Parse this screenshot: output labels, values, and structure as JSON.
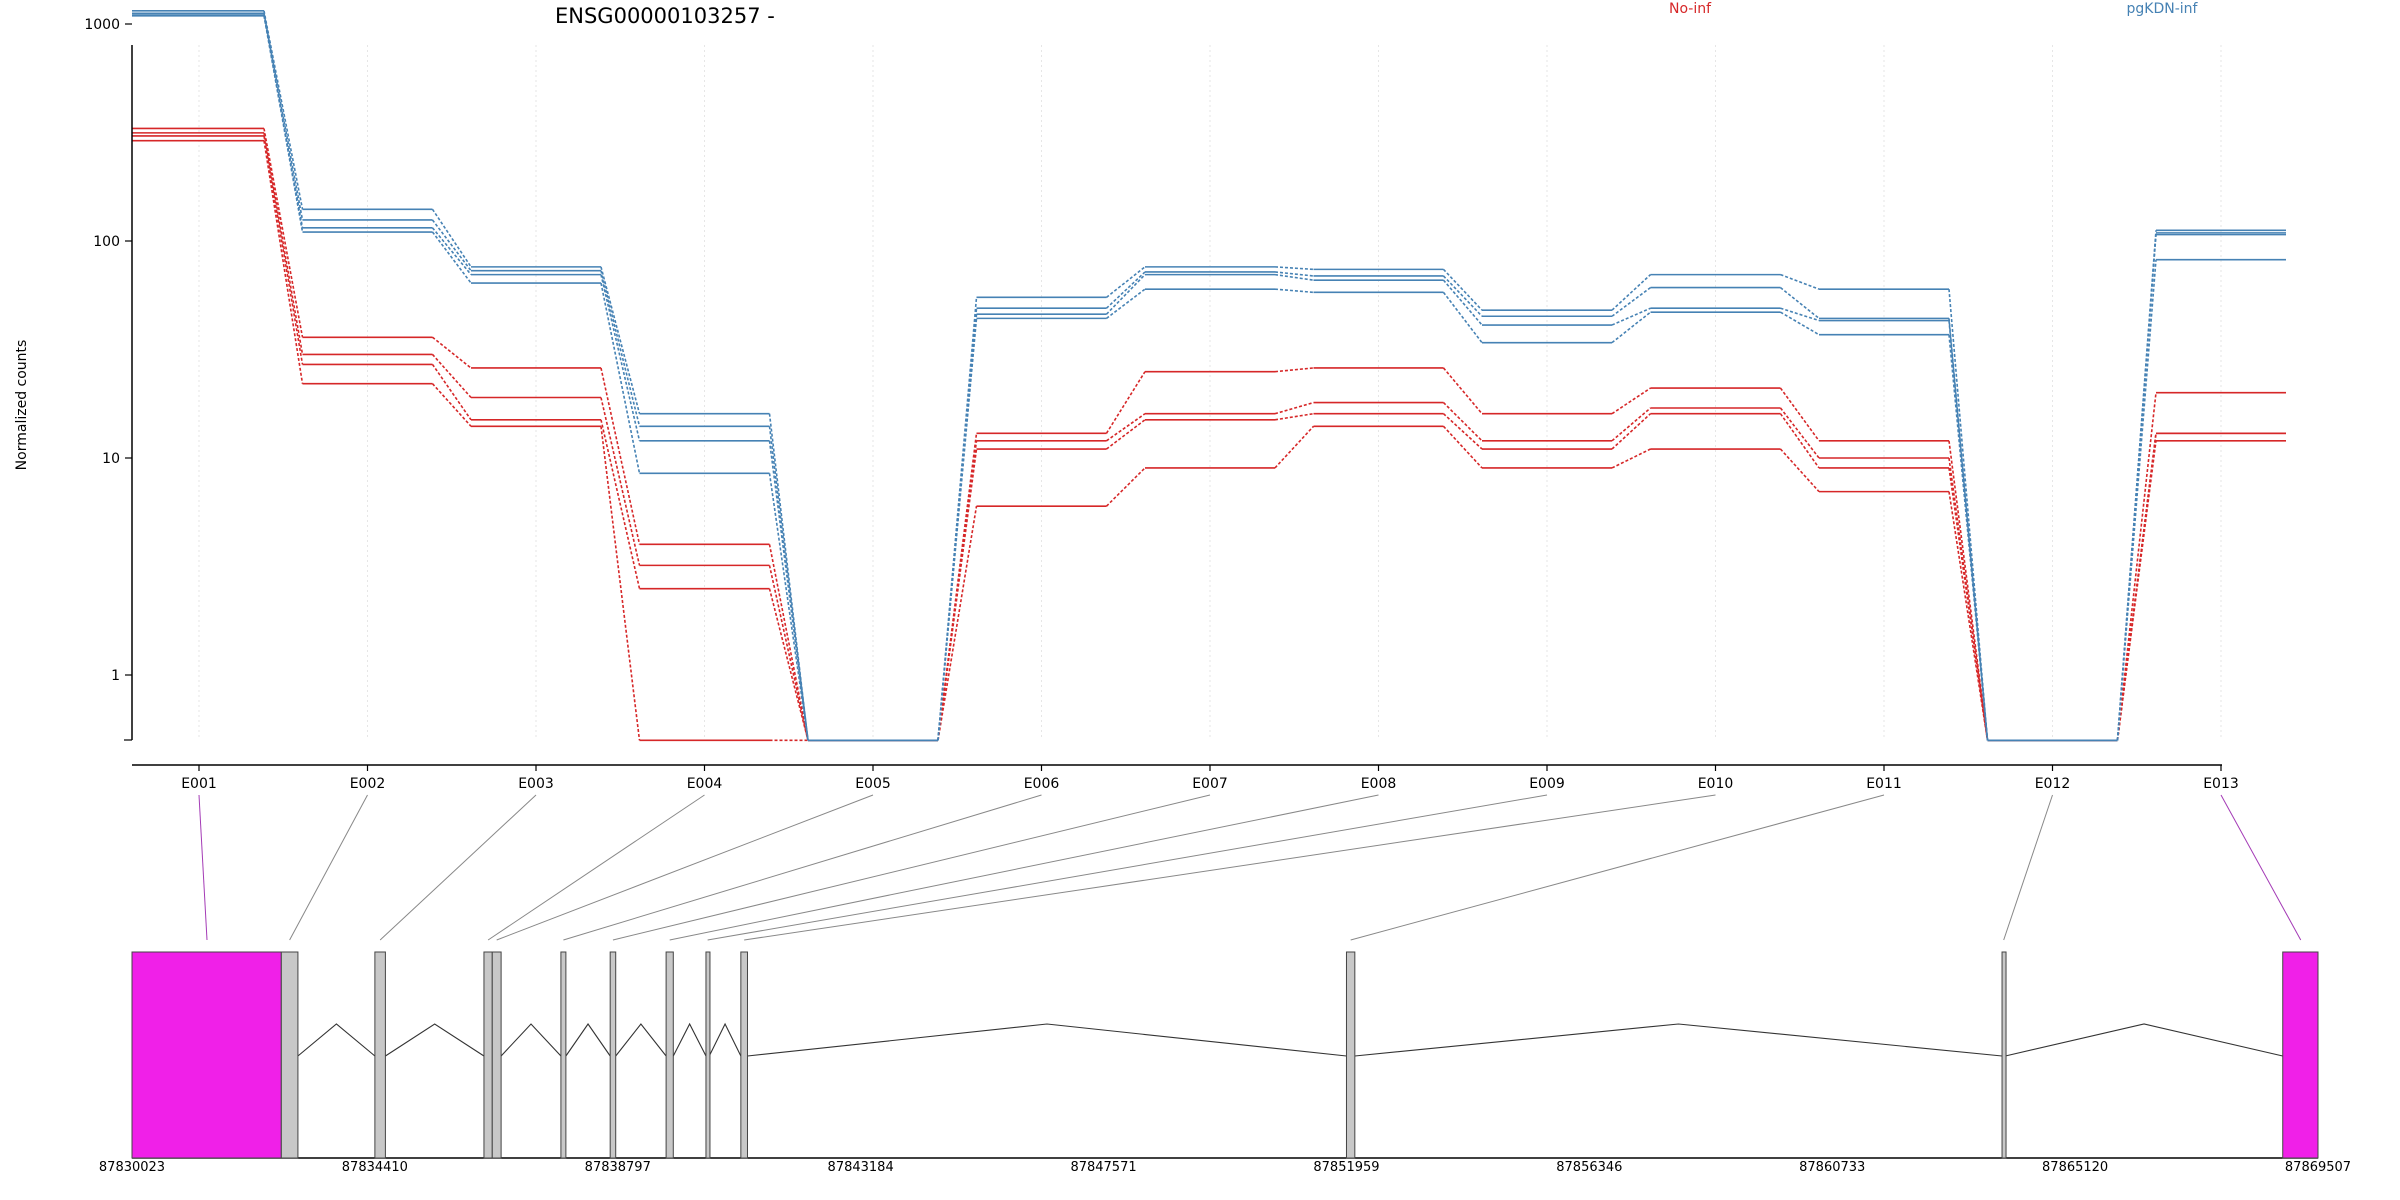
{
  "chart_data": {
    "type": "line",
    "title": "ENSG00000103257 -",
    "ylabel": "Normalized counts",
    "y_scale": "log10",
    "ylim": [
      0.5,
      1500
    ],
    "y_ticks": [
      1,
      10,
      100,
      1000
    ],
    "y_tick_labels": [
      "1",
      "10",
      "100",
      "1000"
    ],
    "categories": [
      "E001",
      "E002",
      "E003",
      "E004",
      "E005",
      "E006",
      "E007",
      "E008",
      "E009",
      "E010",
      "E011",
      "E012",
      "E013"
    ],
    "grid": "vertical dotted lines at exons",
    "legend_position": "top",
    "legend": [
      {
        "name": "No-inf",
        "color": "#d62728"
      },
      {
        "name": "pgKDN-inf",
        "color": "#4682b4"
      }
    ],
    "series": [
      {
        "group": "No-inf",
        "color": "#d62728",
        "values": [
          330,
          36,
          26,
          4,
          0.5,
          13,
          25,
          26,
          16,
          21,
          12,
          0.5,
          20
        ]
      },
      {
        "group": "No-inf",
        "color": "#d62728",
        "values": [
          315,
          30,
          19,
          3.2,
          0.5,
          12,
          16,
          18,
          12,
          17,
          10,
          0.5,
          13
        ]
      },
      {
        "group": "No-inf",
        "color": "#d62728",
        "values": [
          305,
          27,
          15,
          2.5,
          0.5,
          11,
          15,
          16,
          11,
          16,
          9,
          0.5,
          13
        ]
      },
      {
        "group": "No-inf",
        "color": "#d62728",
        "values": [
          290,
          22,
          14,
          0.5,
          0.5,
          6,
          9,
          14,
          9,
          11,
          7,
          0.5,
          12
        ]
      },
      {
        "group": "pgKDN-inf",
        "color": "#4682b4",
        "values": [
          1150,
          140,
          76,
          16,
          0.5,
          55,
          76,
          74,
          48,
          70,
          60,
          0.5,
          112
        ]
      },
      {
        "group": "pgKDN-inf",
        "color": "#4682b4",
        "values": [
          1120,
          125,
          73,
          14,
          0.5,
          49,
          72,
          69,
          45,
          61,
          44,
          0.5,
          109
        ]
      },
      {
        "group": "pgKDN-inf",
        "color": "#4682b4",
        "values": [
          1100,
          115,
          70,
          12,
          0.5,
          46,
          70,
          66,
          41,
          49,
          43,
          0.5,
          107
        ]
      },
      {
        "group": "pgKDN-inf",
        "color": "#4682b4",
        "values": [
          1090,
          110,
          64,
          8.5,
          0.5,
          44,
          60,
          58,
          34,
          47,
          37,
          0.5,
          82
        ]
      }
    ],
    "gene_model": {
      "genomic_ticks": [
        "87830023",
        "87834410",
        "87838797",
        "87843184",
        "87847571",
        "87851959",
        "87856346",
        "87860733",
        "87865120",
        "87869507"
      ],
      "genomic_range": [
        87830023,
        87869507
      ],
      "highlight_color": "#f020e8",
      "exon_color": "#c8c8c8",
      "exons": [
        {
          "id": "E001",
          "start": 87830023,
          "end": 87832720,
          "highlighted": true
        },
        {
          "id": "E002",
          "start": 87832720,
          "end": 87833020,
          "highlighted": false
        },
        {
          "id": "E003",
          "start": 87834410,
          "end": 87834600,
          "highlighted": false
        },
        {
          "id": "E004",
          "start": 87836380,
          "end": 87836530,
          "highlighted": false
        },
        {
          "id": "E005",
          "start": 87836530,
          "end": 87836690,
          "highlighted": false
        },
        {
          "id": "E006",
          "start": 87837770,
          "end": 87837860,
          "highlighted": false
        },
        {
          "id": "E007",
          "start": 87838660,
          "end": 87838760,
          "highlighted": false
        },
        {
          "id": "E008",
          "start": 87839670,
          "end": 87839800,
          "highlighted": false
        },
        {
          "id": "E009",
          "start": 87840390,
          "end": 87840450,
          "highlighted": false
        },
        {
          "id": "E010",
          "start": 87841020,
          "end": 87841140,
          "highlighted": false
        },
        {
          "id": "E011",
          "start": 87851959,
          "end": 87852110,
          "highlighted": false
        },
        {
          "id": "E012",
          "start": 87863800,
          "end": 87863860,
          "highlighted": false
        },
        {
          "id": "E013",
          "start": 87868870,
          "end": 87869507,
          "highlighted": true
        }
      ]
    }
  }
}
